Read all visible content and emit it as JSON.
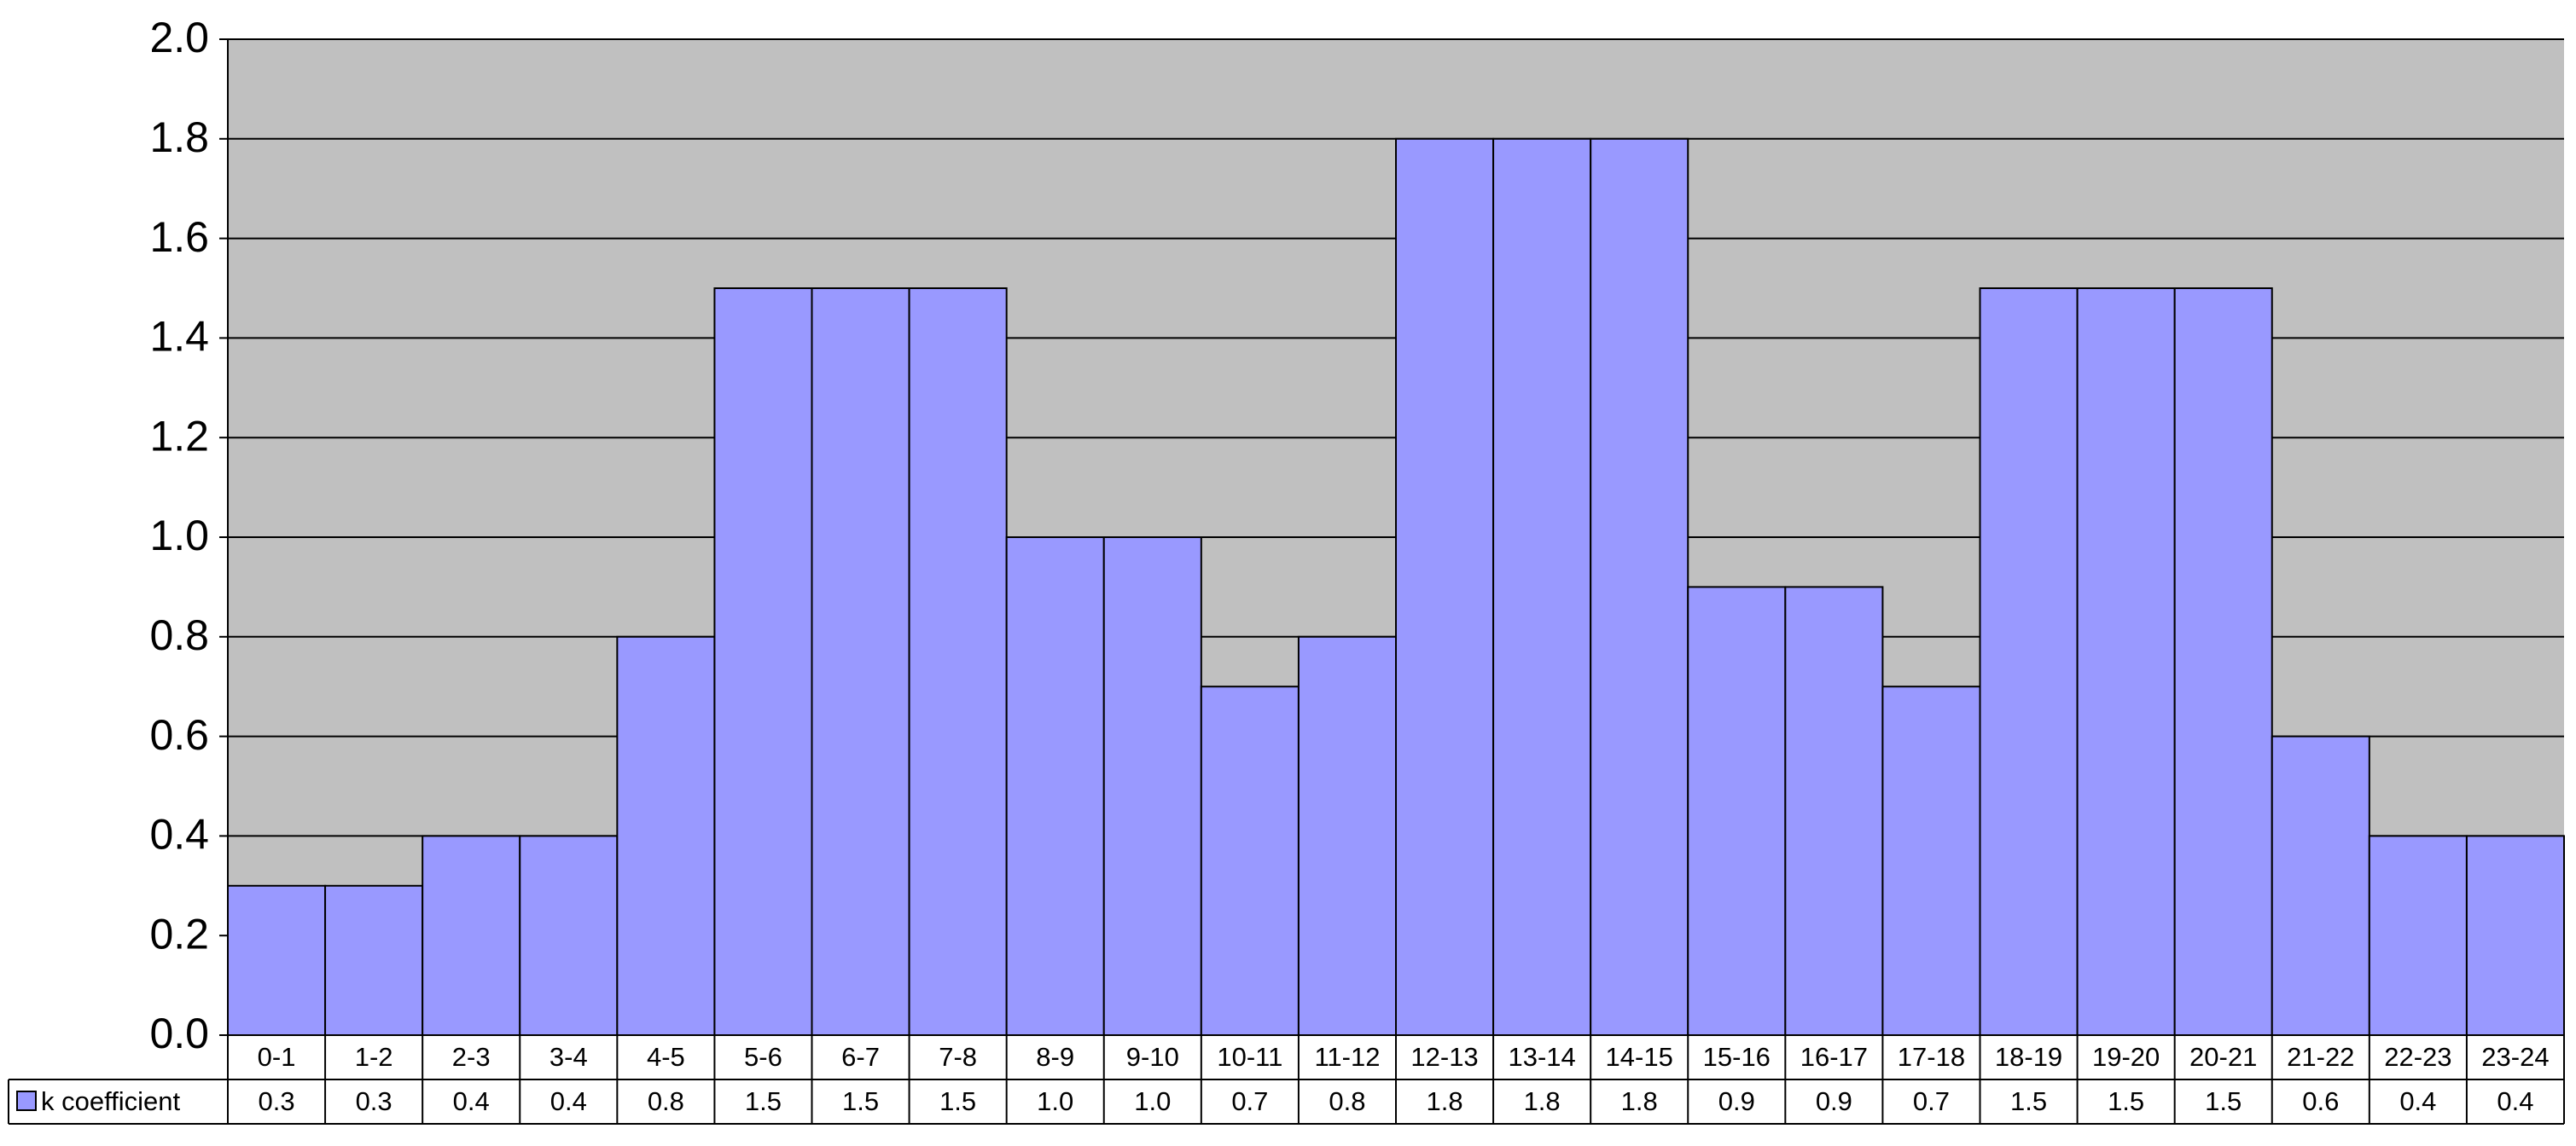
{
  "chart_data": {
    "type": "bar",
    "categories": [
      "0-1",
      "1-2",
      "2-3",
      "3-4",
      "4-5",
      "5-6",
      "6-7",
      "7-8",
      "8-9",
      "9-10",
      "10-11",
      "11-12",
      "12-13",
      "13-14",
      "14-15",
      "15-16",
      "16-17",
      "17-18",
      "18-19",
      "19-20",
      "20-21",
      "21-22",
      "22-23",
      "23-24"
    ],
    "series": [
      {
        "name": "k coefficient",
        "color": "#9999ff",
        "values": [
          0.3,
          0.3,
          0.4,
          0.4,
          0.8,
          1.5,
          1.5,
          1.5,
          1.0,
          1.0,
          0.7,
          0.8,
          1.8,
          1.8,
          1.8,
          0.9,
          0.9,
          0.7,
          1.5,
          1.5,
          1.5,
          0.6,
          0.4,
          0.4
        ],
        "value_labels": [
          "0.3",
          "0.3",
          "0.4",
          "0.4",
          "0.8",
          "1.5",
          "1.5",
          "1.5",
          "1.0",
          "1.0",
          "0.7",
          "0.8",
          "1.8",
          "1.8",
          "1.8",
          "0.9",
          "0.9",
          "0.7",
          "1.5",
          "1.5",
          "1.5",
          "0.6",
          "0.4",
          "0.4"
        ]
      }
    ],
    "ylim": [
      0,
      2
    ],
    "yticks": [
      {
        "value": 0,
        "label": "0.0"
      },
      0.2,
      0.4,
      0.6,
      0.8,
      {
        "value": 1,
        "label": "1.0"
      },
      1.2,
      1.4,
      1.6,
      1.8,
      {
        "value": 2,
        "label": "2.0"
      }
    ],
    "grid": true,
    "plot_background": "#c0c0c0",
    "legend": "data-table"
  }
}
